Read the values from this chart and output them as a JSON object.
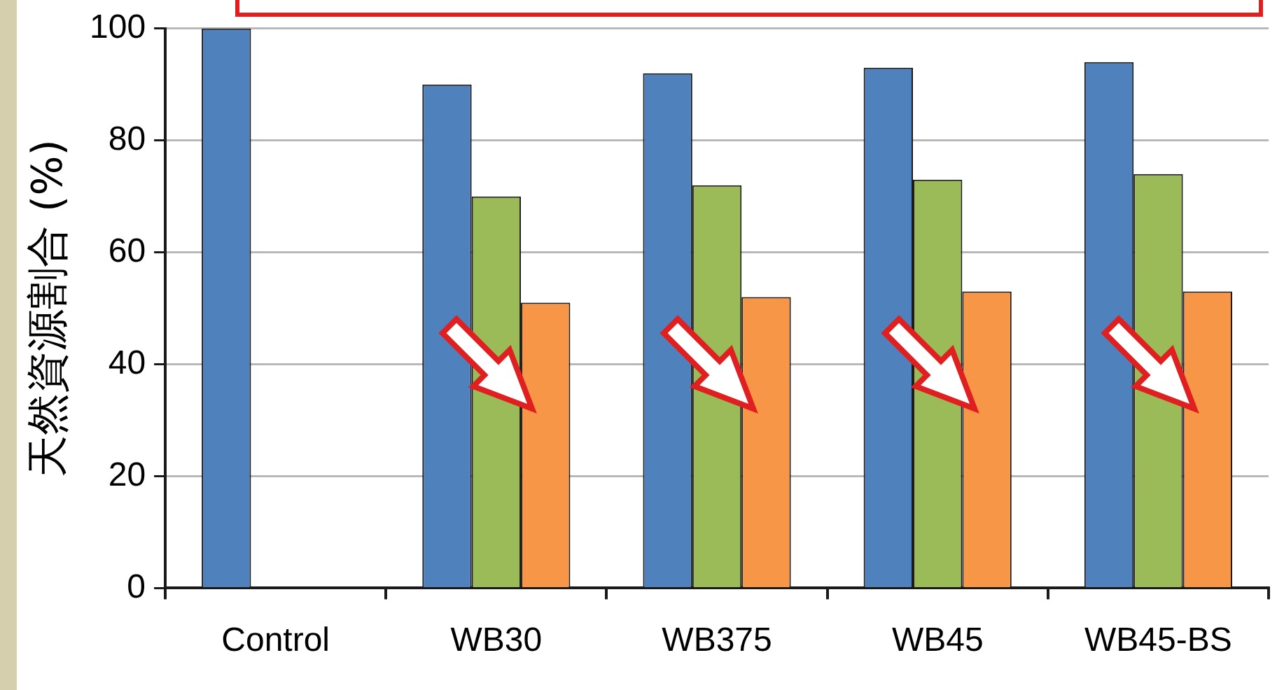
{
  "chart_data": {
    "type": "bar",
    "ylabel": "天然資源割合 (%)",
    "categories": [
      "Control",
      "WB30",
      "WB375",
      "WB45",
      "WB45-BS"
    ],
    "series": [
      {
        "color": "#4f81bd",
        "values": [
          100,
          90,
          92,
          93,
          94
        ]
      },
      {
        "color": "#9bbb59",
        "values": [
          null,
          70,
          72,
          73,
          74
        ]
      },
      {
        "color": "#f79646",
        "values": [
          null,
          51,
          52,
          53,
          53
        ]
      }
    ],
    "ylim": [
      0,
      100
    ],
    "yticks": [
      0,
      20,
      40,
      60,
      80,
      100
    ],
    "grid": "y",
    "legend": false
  }
}
